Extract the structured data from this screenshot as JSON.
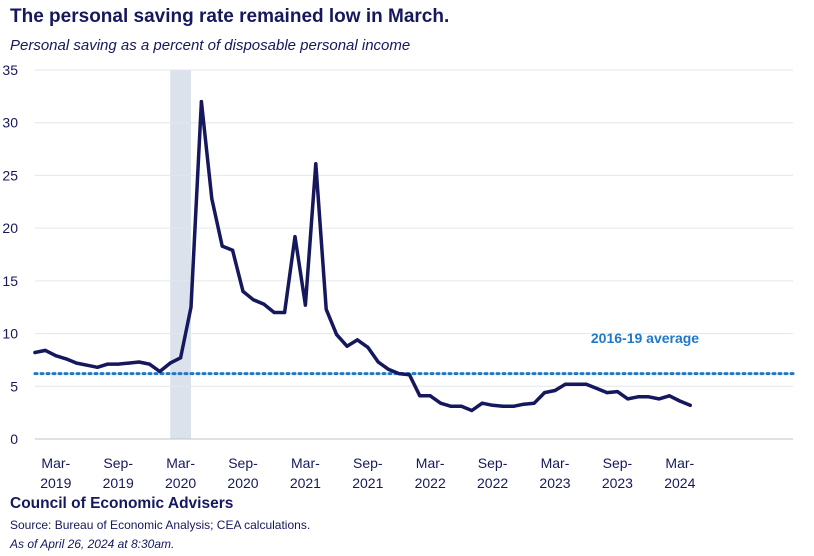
{
  "title": "The personal saving rate remained low in March.",
  "subtitle": "Personal saving as a percent of disposable personal income",
  "footer": {
    "org": "Council of Economic Advisers",
    "source": "Source: Bureau of Economic Analysis; CEA calculations.",
    "as_of": "As of April 26, 2024 at 8:30am."
  },
  "chart_data": {
    "type": "line",
    "title": "The personal saving rate remained low in March.",
    "subtitle": "Personal saving as a percent of disposable personal income",
    "ylim": [
      0,
      35
    ],
    "yticks": [
      0,
      5,
      10,
      15,
      20,
      25,
      30,
      35
    ],
    "grid": "horizontal",
    "x_start": "2019-01",
    "x_tick_labels": [
      {
        "month": "2019-03",
        "label": [
          "Mar-",
          "2019"
        ]
      },
      {
        "month": "2019-09",
        "label": [
          "Sep-",
          "2019"
        ]
      },
      {
        "month": "2020-03",
        "label": [
          "Mar-",
          "2020"
        ]
      },
      {
        "month": "2020-09",
        "label": [
          "Sep-",
          "2020"
        ]
      },
      {
        "month": "2021-03",
        "label": [
          "Mar-",
          "2021"
        ]
      },
      {
        "month": "2021-09",
        "label": [
          "Sep-",
          "2021"
        ]
      },
      {
        "month": "2022-03",
        "label": [
          "Mar-",
          "2022"
        ]
      },
      {
        "month": "2022-09",
        "label": [
          "Sep-",
          "2022"
        ]
      },
      {
        "month": "2023-03",
        "label": [
          "Mar-",
          "2023"
        ]
      },
      {
        "month": "2023-09",
        "label": [
          "Sep-",
          "2023"
        ]
      },
      {
        "month": "2024-03",
        "label": [
          "Mar-",
          "2024"
        ]
      }
    ],
    "recession_shading": {
      "from": "2020-02",
      "to": "2020-04"
    },
    "reference_line": {
      "label": "2016-19 average",
      "value": 6.2,
      "color": "#1f78c8"
    },
    "series": [
      {
        "color": "#16185e",
        "values": [
          8.2,
          8.4,
          7.9,
          7.6,
          7.2,
          7.0,
          6.8,
          7.1,
          7.1,
          7.2,
          7.3,
          7.1,
          6.4,
          7.2,
          7.7,
          12.5,
          32.0,
          22.8,
          18.3,
          17.9,
          14.0,
          13.2,
          12.8,
          12.0,
          12.0,
          19.2,
          12.7,
          26.1,
          12.3,
          9.9,
          8.8,
          9.4,
          8.7,
          7.3,
          6.6,
          6.2,
          6.1,
          4.1,
          4.1,
          3.4,
          3.1,
          3.1,
          2.7,
          3.4,
          3.2,
          3.1,
          3.1,
          3.3,
          3.4,
          4.4,
          4.6,
          5.2,
          5.2,
          5.2,
          4.8,
          4.4,
          4.5,
          3.8,
          4.0,
          4.0,
          3.8,
          4.1,
          3.6,
          3.2
        ]
      }
    ]
  }
}
